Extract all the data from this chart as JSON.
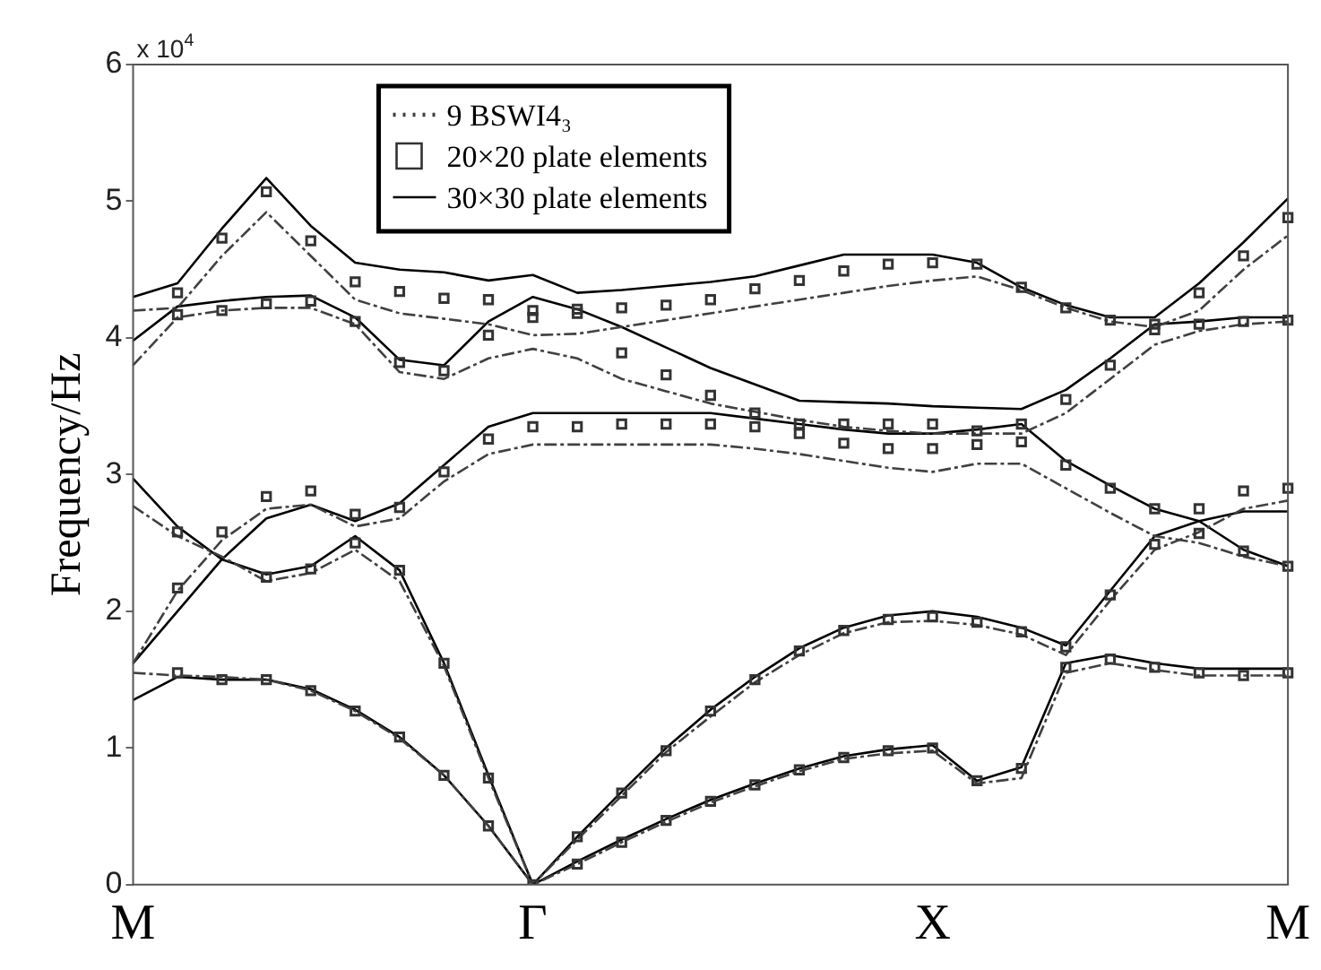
{
  "chart_data": {
    "type": "line",
    "ylabel": "Frequency/Hz",
    "annotations": [
      "x 10$^{4}$"
    ],
    "categories": [
      "M",
      null,
      null,
      null,
      null,
      null,
      null,
      null,
      null,
      "Γ",
      null,
      null,
      null,
      null,
      null,
      null,
      null,
      null,
      "X",
      null,
      null,
      null,
      null,
      null,
      null,
      null,
      "M"
    ],
    "ylim": [
      0,
      6
    ],
    "yticks": [
      0,
      1,
      2,
      3,
      4,
      5,
      6
    ],
    "legend": "top left",
    "series": [
      {
        "name": "9 BSWI4₃",
        "line_style": "dashed",
        "color": "#404040",
        "values": [
          1.55,
          1.53,
          1.52,
          1.5,
          1.42,
          1.27,
          1.07,
          0.8,
          0.43,
          0,
          0.15,
          0.31,
          0.46,
          0.6,
          0.72,
          0.83,
          0.92,
          0.96,
          0.98,
          0.74,
          0.78,
          1.55,
          1.62,
          1.57,
          1.53,
          1.53,
          1.53
        ]
      },
      {
        "name": "20×20 plate elements",
        "type": "scatter",
        "marker": "square",
        "color": "#333333",
        "values": [
          null,
          1.55,
          1.5,
          1.5,
          1.42,
          1.27,
          1.08,
          0.8,
          0.43,
          0,
          0.15,
          0.31,
          0.47,
          0.61,
          0.73,
          0.84,
          0.93,
          0.98,
          1,
          0.76,
          0.85,
          1.59,
          1.65,
          1.59,
          1.55,
          1.53,
          1.55
        ]
      },
      {
        "name": "30×30 plate elements",
        "line_style": "solid",
        "color": "#000000",
        "values": [
          1.35,
          1.52,
          1.5,
          1.5,
          1.43,
          1.28,
          1.08,
          0.8,
          0.43,
          0,
          0.17,
          0.33,
          0.48,
          0.62,
          0.74,
          0.85,
          0.94,
          0.99,
          1.02,
          0.76,
          0.86,
          1.62,
          1.68,
          1.62,
          1.58,
          1.58,
          1.58
        ]
      },
      {
        "type": "scatter",
        "marker": "square",
        "color": "#333333",
        "values": [
          null,
          2.17,
          2.58,
          2.25,
          2.31,
          2.5,
          2.3,
          1.62,
          0.78,
          3.35,
          0.35,
          0.67,
          0.98,
          1.27,
          1.5,
          1.71,
          1.86,
          1.94,
          1.96,
          1.92,
          1.85,
          1.74,
          2.12,
          2.49,
          2.57,
          2.44,
          2.33
        ]
      },
      {
        "type": "scatter",
        "marker": "square",
        "color": "#333333",
        "values": [
          null,
          2.58,
          4.2,
          2.84,
          2.88,
          2.71,
          2.76,
          3.02,
          3.26,
          4.15,
          3.35,
          3.37,
          3.37,
          3.37,
          3.35,
          3.3,
          3.23,
          3.19,
          3.19,
          3.22,
          3.24,
          3.07,
          2.9,
          2.75,
          2.75,
          2.88,
          2.9
        ]
      },
      {
        "type": "scatter",
        "marker": "square",
        "color": "#333333",
        "values": [
          null,
          4.17,
          4.73,
          4.25,
          4.27,
          4.12,
          3.82,
          3.76,
          4.02,
          4.2,
          4.18,
          3.89,
          3.73,
          3.58,
          3.45,
          3.37,
          3.37,
          3.37,
          3.37,
          3.32,
          3.37,
          3.55,
          3.8,
          4.06,
          4.1,
          4.12,
          4.13
        ]
      },
      {
        "type": "scatter",
        "marker": "square",
        "color": "#333333",
        "values": [
          null,
          4.33,
          null,
          5.07,
          4.71,
          4.41,
          4.34,
          4.29,
          4.28,
          null,
          4.21,
          4.22,
          4.24,
          4.28,
          4.36,
          4.42,
          4.49,
          4.54,
          4.55,
          4.54,
          4.37,
          4.22,
          4.13,
          4.1,
          4.33,
          4.6,
          4.88
        ]
      },
      {
        "line_style": "dashed",
        "color": "#404040",
        "values": [
          1.62,
          2.15,
          2.52,
          2.75,
          2.78,
          2.62,
          2.68,
          2.95,
          3.15,
          3.22,
          3.22,
          3.22,
          3.22,
          3.22,
          3.19,
          3.15,
          3.1,
          3.05,
          3.02,
          3.08,
          3.08,
          2.9,
          2.72,
          2.55,
          2.5,
          2.4,
          2.33
        ]
      },
      {
        "line_style": "dashed",
        "color": "#404040",
        "values": [
          2.77,
          2.55,
          2.4,
          2.22,
          2.28,
          2.45,
          2.22,
          1.6,
          0.78,
          0,
          0.33,
          0.65,
          0.97,
          1.23,
          1.48,
          1.68,
          1.84,
          1.92,
          1.93,
          1.9,
          1.83,
          1.68,
          2.08,
          2.45,
          2.58,
          2.75,
          2.81
        ]
      },
      {
        "line_style": "dashed",
        "color": "#404040",
        "values": [
          3.8,
          4.15,
          4.2,
          4.22,
          4.22,
          4.1,
          3.75,
          3.7,
          3.85,
          3.92,
          3.85,
          3.7,
          3.61,
          3.52,
          3.46,
          3.4,
          3.35,
          3.32,
          3.3,
          3.3,
          3.3,
          3.45,
          3.7,
          3.95,
          4.05,
          4.1,
          4.12
        ]
      },
      {
        "line_style": "dashed",
        "color": "#404040",
        "values": [
          4.2,
          4.22,
          4.6,
          4.92,
          4.6,
          4.28,
          4.18,
          4.14,
          4.1,
          4.02,
          4.03,
          4.08,
          4.13,
          4.18,
          4.23,
          4.28,
          4.33,
          4.38,
          4.42,
          4.45,
          4.35,
          4.22,
          4.12,
          4.08,
          4.2,
          4.5,
          4.75
        ]
      },
      {
        "line_style": "solid",
        "color": "#000000",
        "values": [
          1.62,
          2,
          2.38,
          2.68,
          2.78,
          2.66,
          2.79,
          3.07,
          3.35,
          3.45,
          3.45,
          3.45,
          3.45,
          3.45,
          3.41,
          3.37,
          3.33,
          3.3,
          3.3,
          3.33,
          3.37,
          3.1,
          2.92,
          2.75,
          2.66,
          2.45,
          2.33
        ]
      },
      {
        "line_style": "solid",
        "color": "#000000",
        "values": [
          2.97,
          2.62,
          2.38,
          2.27,
          2.33,
          2.55,
          2.3,
          1.62,
          0.8,
          0,
          0.35,
          0.68,
          1,
          1.28,
          1.52,
          1.73,
          1.88,
          1.97,
          2,
          1.96,
          1.88,
          1.75,
          2.15,
          2.55,
          2.66,
          2.73,
          2.73
        ]
      },
      {
        "line_style": "solid",
        "color": "#000000",
        "values": [
          3.98,
          4.23,
          4.27,
          4.3,
          4.31,
          4.15,
          3.84,
          3.8,
          4.12,
          4.3,
          4.21,
          4.08,
          3.93,
          3.78,
          3.66,
          3.54,
          3.53,
          3.52,
          3.5,
          3.49,
          3.48,
          3.62,
          3.85,
          4.1,
          4.12,
          4.15,
          4.15
        ]
      },
      {
        "line_style": "solid",
        "color": "#000000",
        "values": [
          4.3,
          4.4,
          4.8,
          5.17,
          4.82,
          4.55,
          4.5,
          4.48,
          4.42,
          4.46,
          4.33,
          4.35,
          4.38,
          4.41,
          4.45,
          4.53,
          4.61,
          4.61,
          4.61,
          4.55,
          4.37,
          4.24,
          4.15,
          4.15,
          4.4,
          4.7,
          5.02
        ]
      }
    ]
  }
}
